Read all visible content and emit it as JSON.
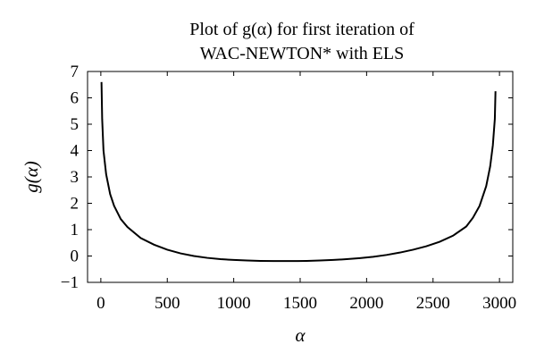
{
  "chart_data": {
    "type": "line",
    "title_line1": "Plot of g(α) for first iteration of",
    "title_line2": "WAC-NEWTON* with ELS",
    "xlabel": "α",
    "ylabel": "g(α)",
    "xlim": [
      -100,
      3100
    ],
    "ylim": [
      -1,
      7
    ],
    "xticks": [
      0,
      500,
      1000,
      1500,
      2000,
      2500,
      3000
    ],
    "yticks": [
      -1,
      0,
      1,
      2,
      3,
      4,
      5,
      6,
      7
    ],
    "xtick_labels": [
      "0",
      "500",
      "1000",
      "1500",
      "2000",
      "2500",
      "3000"
    ],
    "ytick_labels": [
      "−1",
      "0",
      "1",
      "2",
      "3",
      "4",
      "5",
      "6",
      "7"
    ],
    "grid": false,
    "series": [
      {
        "color": "#000000",
        "x": [
          5,
          10,
          20,
          40,
          70,
          100,
          150,
          200,
          300,
          400,
          500,
          600,
          700,
          800,
          900,
          1000,
          1100,
          1200,
          1300,
          1400,
          1480,
          1550,
          1650,
          1750,
          1850,
          1950,
          2050,
          2150,
          2250,
          2350,
          2450,
          2550,
          2650,
          2750,
          2800,
          2850,
          2900,
          2930,
          2950,
          2965,
          2970
        ],
        "y": [
          6.6,
          5.2,
          4.0,
          3.1,
          2.35,
          1.9,
          1.4,
          1.1,
          0.68,
          0.43,
          0.24,
          0.1,
          0.0,
          -0.07,
          -0.12,
          -0.15,
          -0.17,
          -0.185,
          -0.19,
          -0.19,
          -0.19,
          -0.185,
          -0.17,
          -0.15,
          -0.12,
          -0.08,
          -0.03,
          0.04,
          0.13,
          0.24,
          0.37,
          0.54,
          0.77,
          1.12,
          1.45,
          1.9,
          2.65,
          3.4,
          4.2,
          5.2,
          6.25
        ]
      }
    ]
  }
}
